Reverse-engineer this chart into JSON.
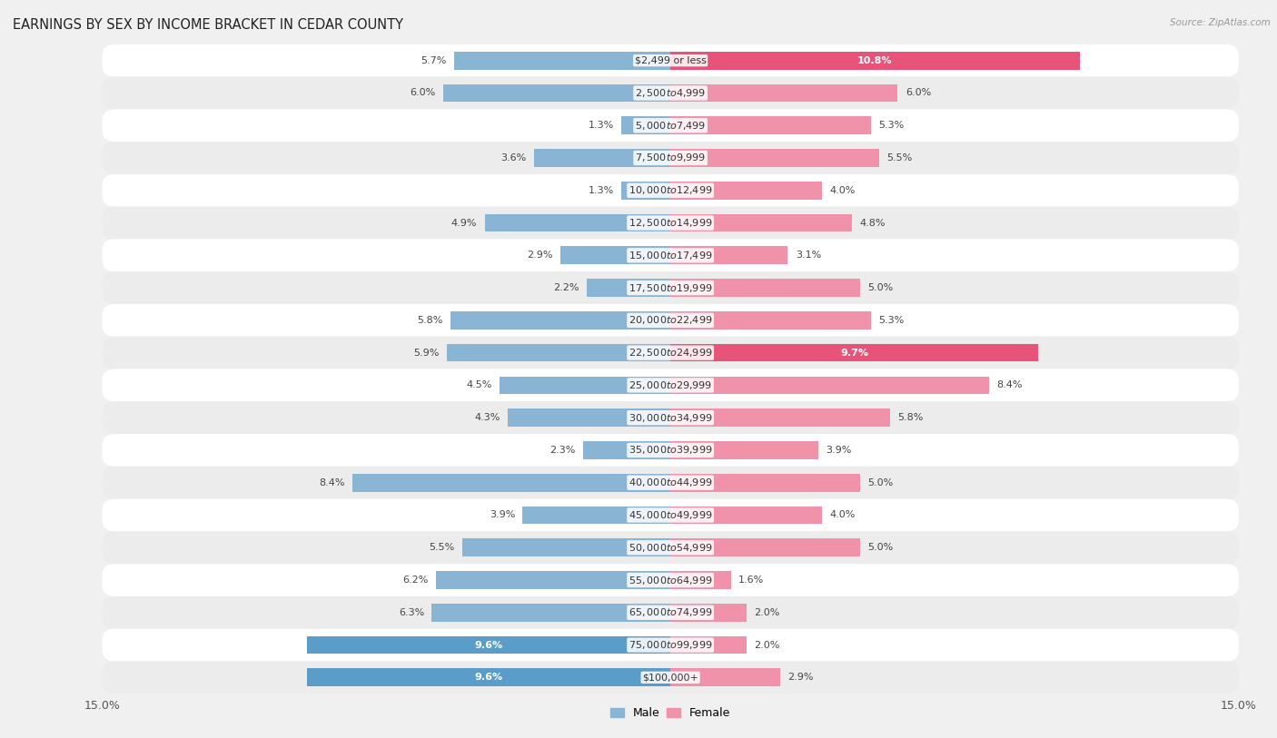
{
  "title": "EARNINGS BY SEX BY INCOME BRACKET IN CEDAR COUNTY",
  "source": "Source: ZipAtlas.com",
  "categories": [
    "$2,499 or less",
    "$2,500 to $4,999",
    "$5,000 to $7,499",
    "$7,500 to $9,999",
    "$10,000 to $12,499",
    "$12,500 to $14,999",
    "$15,000 to $17,499",
    "$17,500 to $19,999",
    "$20,000 to $22,499",
    "$22,500 to $24,999",
    "$25,000 to $29,999",
    "$30,000 to $34,999",
    "$35,000 to $39,999",
    "$40,000 to $44,999",
    "$45,000 to $49,999",
    "$50,000 to $54,999",
    "$55,000 to $64,999",
    "$65,000 to $74,999",
    "$75,000 to $99,999",
    "$100,000+"
  ],
  "male_values": [
    5.7,
    6.0,
    1.3,
    3.6,
    1.3,
    4.9,
    2.9,
    2.2,
    5.8,
    5.9,
    4.5,
    4.3,
    2.3,
    8.4,
    3.9,
    5.5,
    6.2,
    6.3,
    9.6,
    9.6
  ],
  "female_values": [
    10.8,
    6.0,
    5.3,
    5.5,
    4.0,
    4.8,
    3.1,
    5.0,
    5.3,
    9.7,
    8.4,
    5.8,
    3.9,
    5.0,
    4.0,
    5.0,
    1.6,
    2.0,
    2.0,
    2.9
  ],
  "male_color": "#8ab4d4",
  "female_color": "#f093aa",
  "male_highlight_color": "#5b9dc9",
  "female_highlight_color": "#e8537a",
  "row_color_odd": "#f5f5f5",
  "row_color_even": "#e8e8e8",
  "background_color": "#f0f0f0",
  "text_color": "#444444",
  "xlim": 15.0,
  "bar_height": 0.55,
  "title_fontsize": 10.5,
  "label_fontsize": 8.0,
  "value_fontsize": 8.0,
  "tick_fontsize": 9,
  "source_fontsize": 7.5,
  "male_highlight_indices": [
    18,
    19
  ],
  "female_highlight_indices": [
    0,
    9
  ]
}
